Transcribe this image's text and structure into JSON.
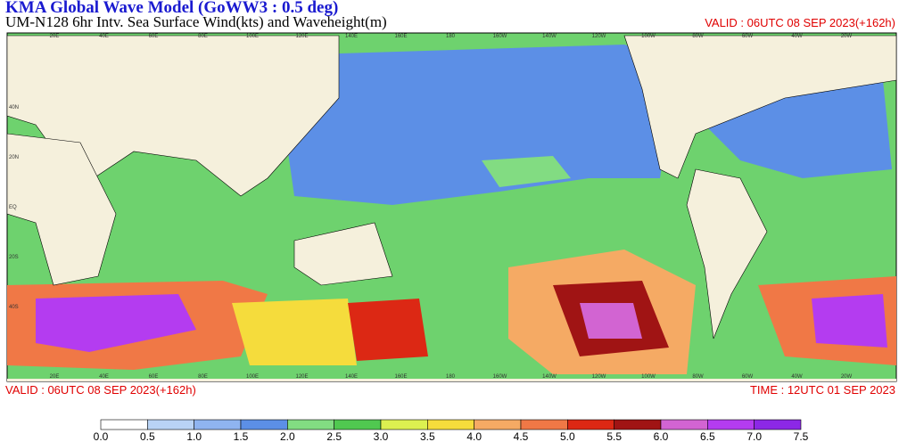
{
  "header": {
    "title": "KMA  Global Wave Model (GoWW3 : 0.5 deg)",
    "subtitle": "UM-N128  6hr Intv. Sea Surface Wind(kts) and Waveheight(m)",
    "valid_top": "VALID : 06UTC 08 SEP 2023(+162h)"
  },
  "footer": {
    "valid": "VALID : 06UTC 08 SEP 2023(+162h)",
    "time": "TIME : 12UTC 01 SEP 2023"
  },
  "map": {
    "lon_labels": [
      "20E",
      "40E",
      "60E",
      "80E",
      "100E",
      "120E",
      "140E",
      "160E",
      "180",
      "160W",
      "140W",
      "120W",
      "100W",
      "80W",
      "60W",
      "40W",
      "20W"
    ],
    "lat_labels": [
      "40N",
      "20N",
      "EQ",
      "20S",
      "40S"
    ]
  },
  "colorbar": {
    "ticks": [
      {
        "value": 0,
        "label": "0.0"
      },
      0.5,
      {
        "value": 1,
        "label": "1.0"
      },
      1.5,
      {
        "value": 2,
        "label": "2.0"
      },
      2.5,
      {
        "value": 3,
        "label": "3.0"
      },
      3.5,
      {
        "value": 4,
        "label": "4.0"
      },
      4.5,
      {
        "value": 5,
        "label": "5.0"
      },
      5.5,
      {
        "value": 6,
        "label": "6.0"
      },
      6.5,
      {
        "value": 7,
        "label": "7.0"
      },
      7.5
    ],
    "colors": [
      "#ffffff",
      "#b9d3f5",
      "#8fb4f0",
      "#5c8fe6",
      "#82dc82",
      "#50c850",
      "#dcf050",
      "#f5dc3c",
      "#f5aa64",
      "#f07846",
      "#dc2814",
      "#a01414",
      "#d264d2",
      "#b43cf0",
      "#8c28e6"
    ]
  }
}
